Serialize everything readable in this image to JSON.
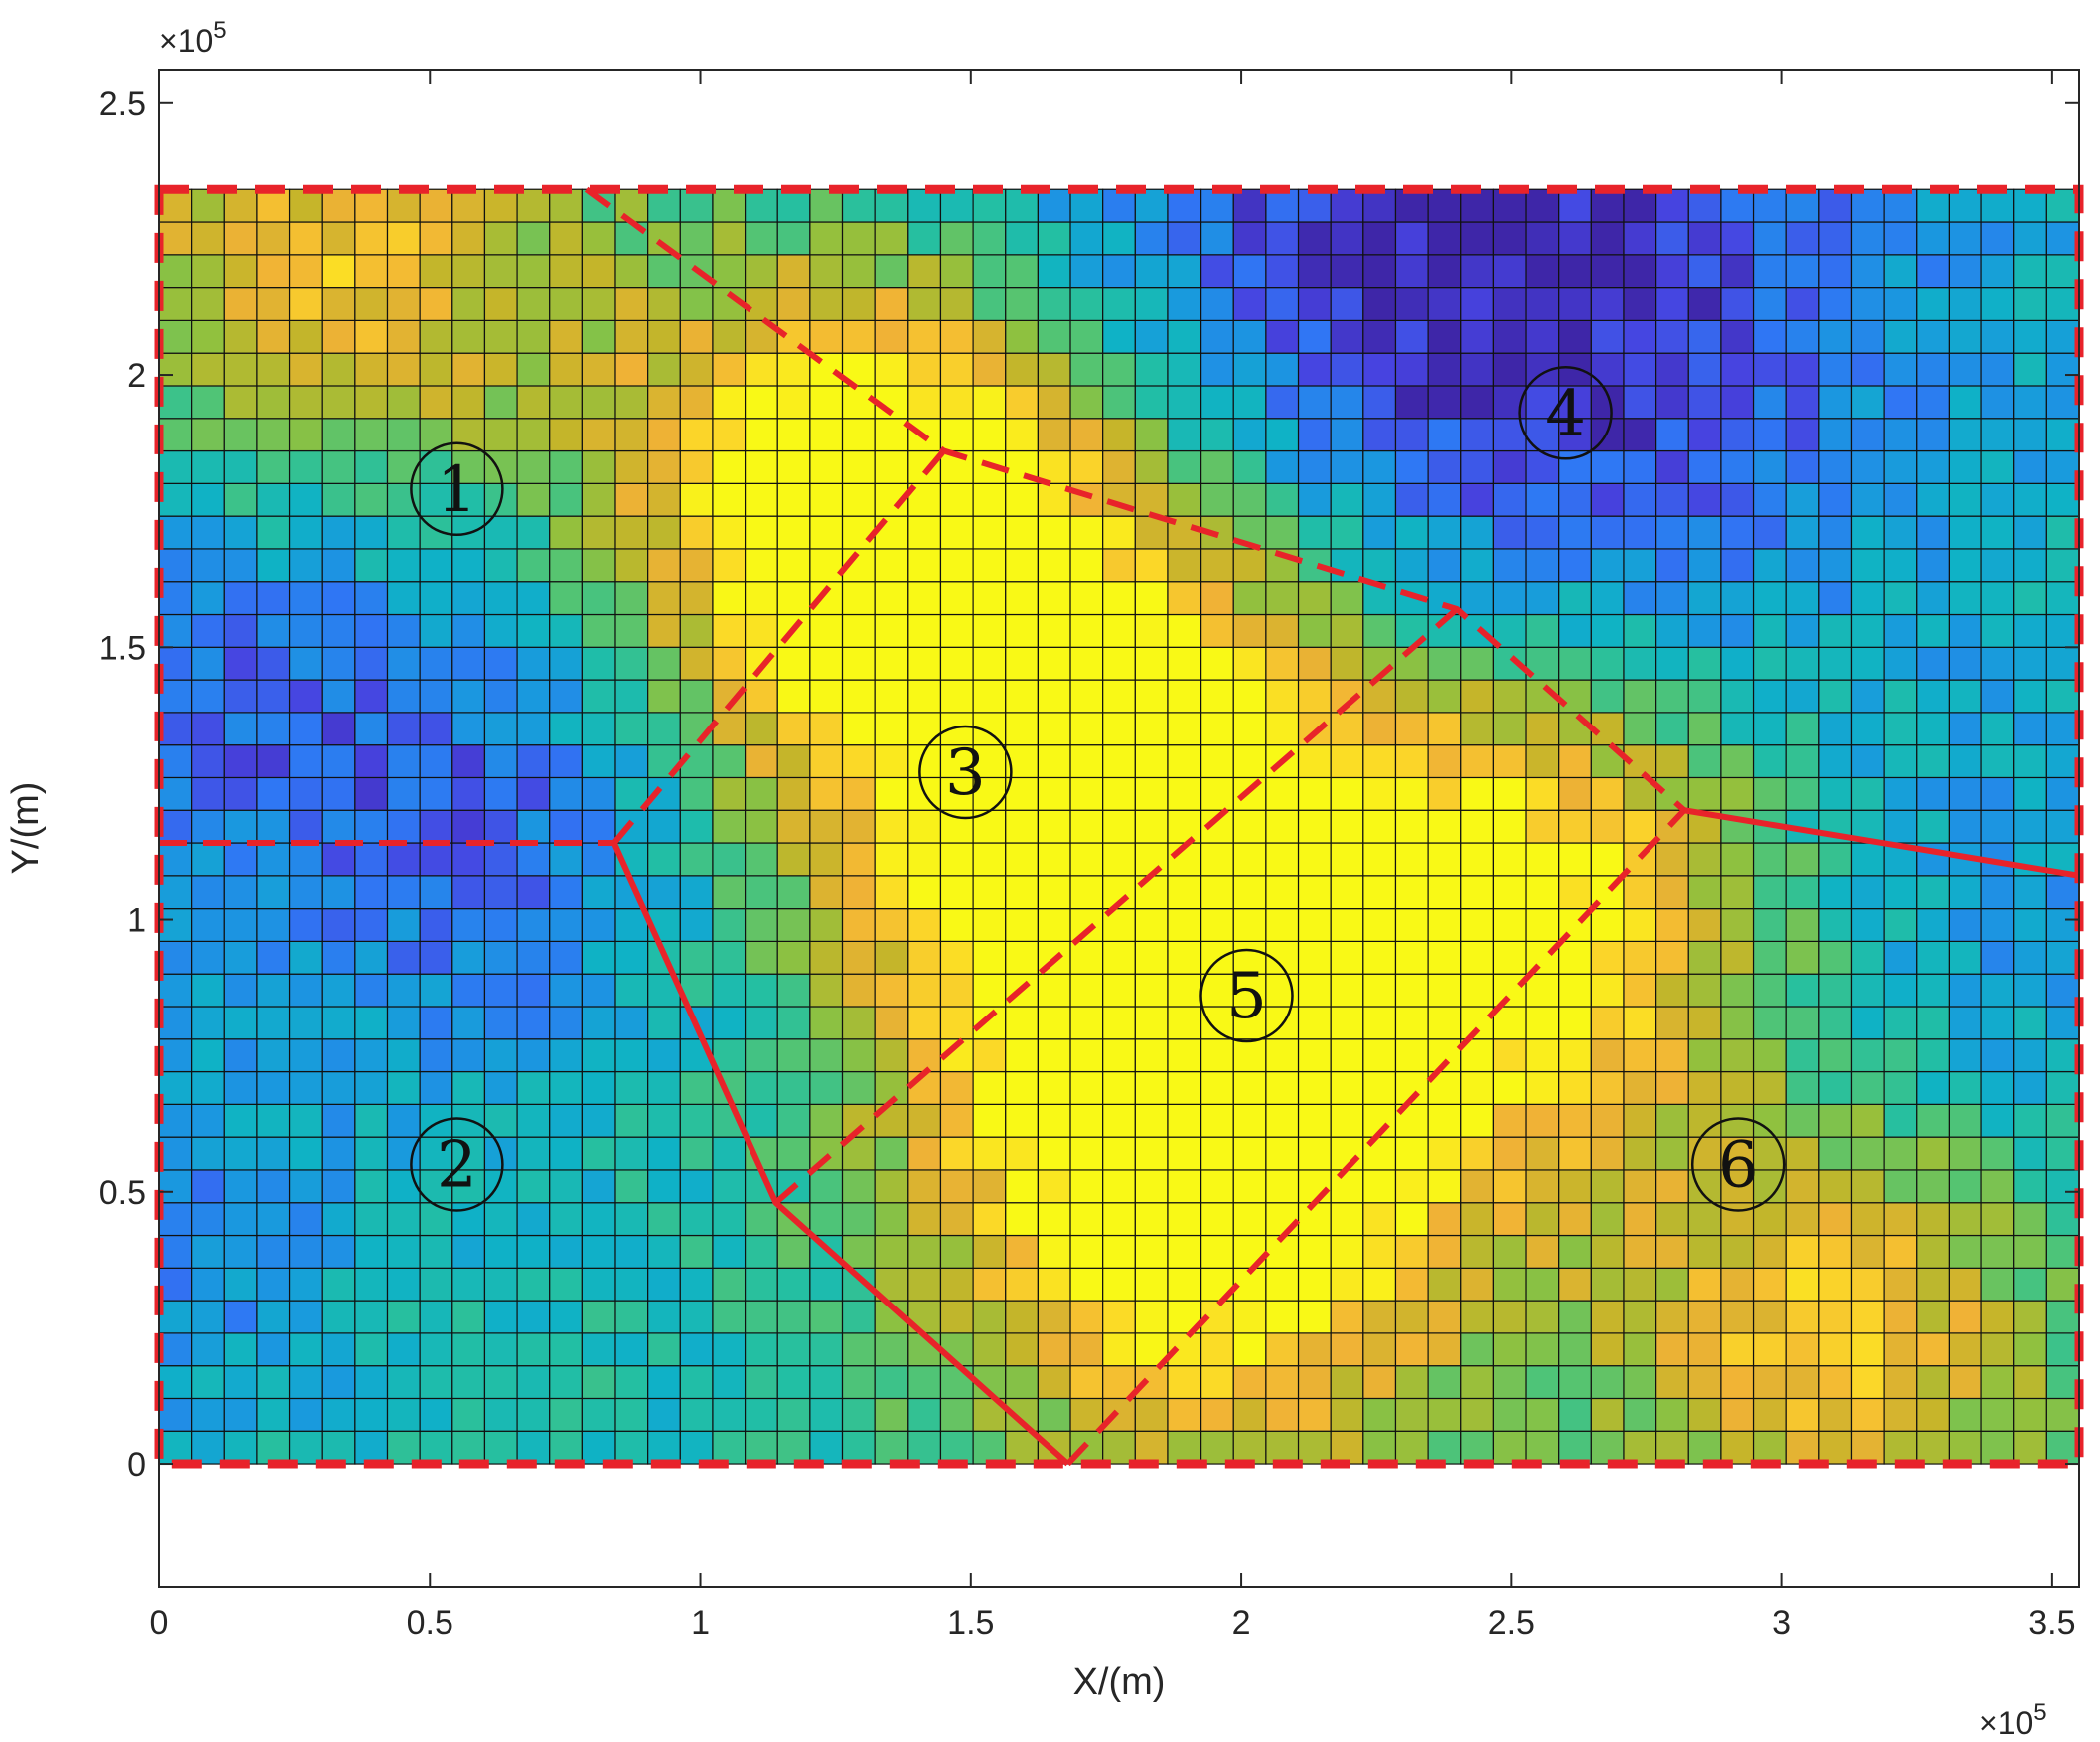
{
  "chart_data": {
    "type": "heatmap",
    "title": "",
    "xlabel": "X/(m)",
    "ylabel": "Y/(m)",
    "xlim": [
      0,
      355000
    ],
    "ylim": [
      -22500,
      256000
    ],
    "x_ticks": [
      0,
      50000,
      100000,
      150000,
      200000,
      250000,
      300000,
      350000
    ],
    "x_tick_labels": [
      "0",
      "0.5",
      "1",
      "1.5",
      "2",
      "2.5",
      "3",
      "3.5"
    ],
    "y_ticks": [
      0,
      50000,
      100000,
      150000,
      200000,
      250000
    ],
    "y_tick_labels": [
      "0",
      "0.5",
      "1",
      "1.5",
      "2",
      "2.5"
    ],
    "x_exponent_label": "×10",
    "y_exponent_label": "×10",
    "exponent_power": "5",
    "grid_cells": {
      "cols": 59,
      "rows": 39,
      "x_range": [
        0,
        355000
      ],
      "y_range": [
        0,
        234000
      ]
    },
    "colormap": "parula",
    "colormap_stops": [
      "#3e26a8",
      "#4743e0",
      "#2f77f4",
      "#1a98df",
      "#0fb2c6",
      "#23bfa3",
      "#52c474",
      "#8fc13f",
      "#c5b52a",
      "#f0b236",
      "#fbd629",
      "#f9f916"
    ],
    "field_centers": [
      {
        "x": 30000,
        "y": 210000,
        "value": 0.55,
        "sigma": 35000
      },
      {
        "x": 125000,
        "y": 180000,
        "value": 0.55,
        "sigma": 30000
      },
      {
        "x": 160000,
        "y": 150000,
        "value": 0.55,
        "sigma": 40000
      },
      {
        "x": 195000,
        "y": 100000,
        "value": 0.6,
        "sigma": 40000
      },
      {
        "x": 260000,
        "y": 105000,
        "value": 0.5,
        "sigma": 30000
      },
      {
        "x": 195000,
        "y": 45000,
        "value": 0.55,
        "sigma": 35000
      },
      {
        "x": 310000,
        "y": 25000,
        "value": 0.45,
        "sigma": 30000
      },
      {
        "x": 240000,
        "y": 215000,
        "value": -0.45,
        "sigma": 60000
      },
      {
        "x": 20000,
        "y": 160000,
        "value": -0.35,
        "sigma": 40000
      },
      {
        "x": 70000,
        "y": 110000,
        "value": -0.2,
        "sigma": 30000
      },
      {
        "x": 340000,
        "y": 90000,
        "value": -0.15,
        "sigma": 30000
      },
      {
        "x": 0,
        "y": 40000,
        "value": -0.2,
        "sigma": 25000
      }
    ],
    "field_base": 0.42,
    "boundary_color": "#e8232a",
    "boundary_rectangle": {
      "x": [
        0,
        355000
      ],
      "y": [
        0,
        234000
      ]
    },
    "dashed_boundaries": [
      [
        [
          0,
          114000
        ],
        [
          84000,
          114000
        ]
      ],
      [
        [
          79000,
          234000
        ],
        [
          145000,
          186000
        ],
        [
          240000,
          157000
        ],
        [
          282000,
          120000
        ]
      ],
      [
        [
          84000,
          114000
        ],
        [
          145000,
          186000
        ]
      ],
      [
        [
          114000,
          48000
        ],
        [
          240000,
          157000
        ]
      ],
      [
        [
          168000,
          0
        ],
        [
          282000,
          120000
        ]
      ]
    ],
    "solid_boundaries": [
      [
        [
          84000,
          114000
        ],
        [
          114000,
          48000
        ],
        [
          168000,
          0
        ]
      ],
      [
        [
          282000,
          120000
        ],
        [
          355000,
          108000
        ]
      ]
    ],
    "regions": [
      {
        "label": "1",
        "x": 55000,
        "y": 179000
      },
      {
        "label": "2",
        "x": 55000,
        "y": 55000
      },
      {
        "label": "3",
        "x": 149000,
        "y": 127000
      },
      {
        "label": "4",
        "x": 260000,
        "y": 193000
      },
      {
        "label": "5",
        "x": 201000,
        "y": 86000
      },
      {
        "label": "6",
        "x": 292000,
        "y": 55000
      }
    ]
  }
}
